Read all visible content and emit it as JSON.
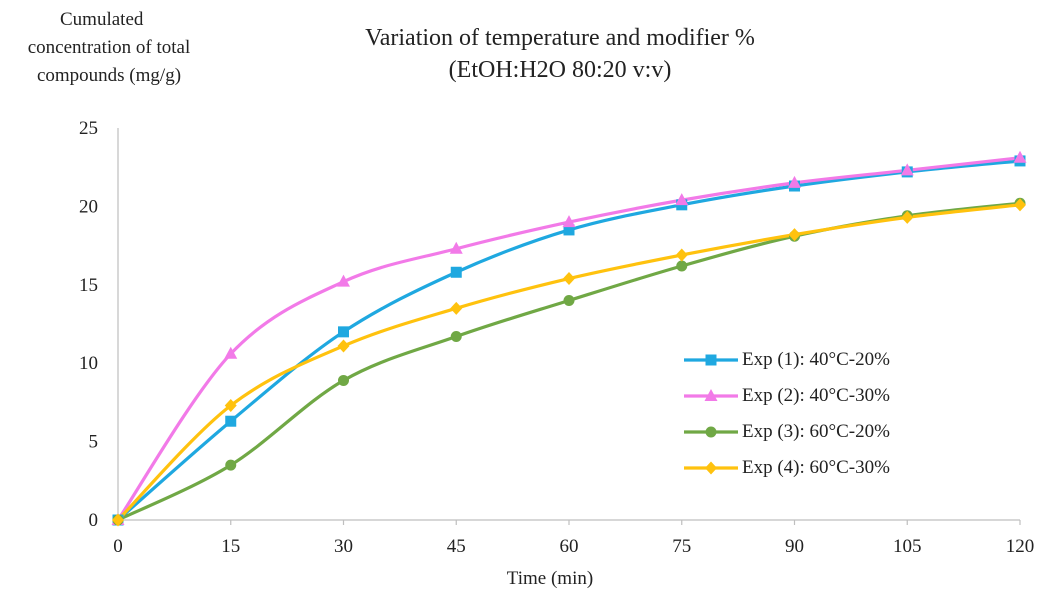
{
  "chart_data": {
    "type": "line",
    "title_line1": "Variation of temperature and modifier %",
    "title_line2": "(EtOH:H2O 80:20 v:v)",
    "ylabel_line1": "Cumulated",
    "ylabel_line2": "concentration of total",
    "ylabel_line3": "compounds (mg/g)",
    "xlabel": "Time (min)",
    "x": [
      0,
      15,
      30,
      45,
      60,
      75,
      90,
      105,
      120
    ],
    "xlim": [
      0,
      120
    ],
    "ylim": [
      0,
      25
    ],
    "xticks": [
      "0",
      "15",
      "30",
      "45",
      "60",
      "75",
      "90",
      "105",
      "120"
    ],
    "yticks": [
      "0",
      "5",
      "10",
      "15",
      "20",
      "25"
    ],
    "legend_position": "right",
    "grid": false,
    "series": [
      {
        "name": "Exp (1): 40°C-20%",
        "color": "#1fa8e0",
        "marker": "square",
        "values": [
          0,
          6.3,
          12.0,
          15.8,
          18.5,
          20.1,
          21.3,
          22.2,
          22.9
        ]
      },
      {
        "name": "Exp (2): 40°C-30%",
        "color": "#f27ae8",
        "marker": "triangle",
        "values": [
          0,
          10.6,
          15.2,
          17.3,
          19.0,
          20.4,
          21.5,
          22.3,
          23.1
        ]
      },
      {
        "name": "Exp (3): 60°C-20%",
        "color": "#70a845",
        "marker": "circle",
        "values": [
          0,
          3.5,
          8.9,
          11.7,
          14.0,
          16.2,
          18.1,
          19.4,
          20.2
        ]
      },
      {
        "name": "Exp (4): 60°C-30%",
        "color": "#ffc20e",
        "marker": "diamond",
        "values": [
          0,
          7.3,
          11.1,
          13.5,
          15.4,
          16.9,
          18.2,
          19.3,
          20.1
        ]
      }
    ]
  }
}
